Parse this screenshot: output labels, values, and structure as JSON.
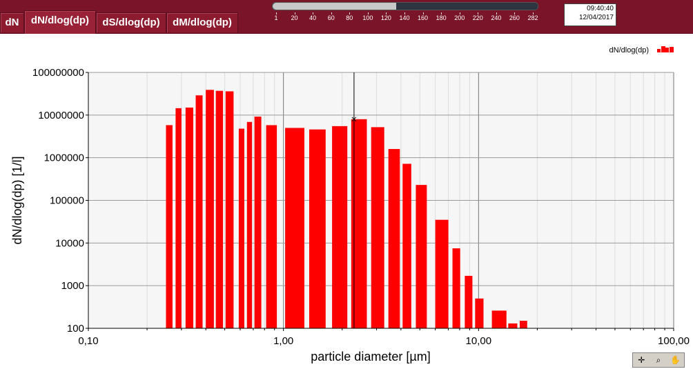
{
  "tabs": [
    {
      "label": "dN",
      "active": false
    },
    {
      "label": "dN/dlog(dp)",
      "active": true
    },
    {
      "label": "dS/dlog(dp)",
      "active": false
    },
    {
      "label": "dM/dlog(dp)",
      "active": false
    }
  ],
  "time_slider": {
    "ticks": [
      "1",
      "20",
      "40",
      "60",
      "80",
      "100",
      "120",
      "140",
      "160",
      "180",
      "200",
      "220",
      "240",
      "260",
      "282"
    ],
    "position": 0.465
  },
  "clock": {
    "time": "09:40:40",
    "date": "12/04/2017"
  },
  "legend": {
    "label": "dN/dlog(dp)"
  },
  "colors": {
    "bar": "#ff0000",
    "header": "#7a1428",
    "tab": "#8c1b30"
  },
  "toolbar": {
    "icons": [
      "crosshair-icon",
      "zoom-icon",
      "pan-hand-icon"
    ]
  },
  "chart_data": {
    "type": "bar",
    "title": "",
    "xlabel": "particle diameter [µm]",
    "ylabel": "dN/dlog(dp) [1/l]",
    "xscale": "log",
    "yscale": "log",
    "xlim": [
      0.1,
      100
    ],
    "ylim": [
      100,
      100000000
    ],
    "x_tick_labels": [
      "0,10",
      "1,00",
      "10,00",
      "100,00"
    ],
    "y_tick_labels": [
      "100",
      "1000",
      "10000",
      "100000",
      "1000000",
      "10000000",
      "100000000"
    ],
    "grid": true,
    "legend_position": "top-right",
    "cursor_x": 2.3,
    "series": [
      {
        "name": "dN/dlog(dp)",
        "x": [
          0.26,
          0.29,
          0.33,
          0.37,
          0.42,
          0.47,
          0.53,
          0.61,
          0.67,
          0.74,
          0.87,
          1.15,
          1.5,
          1.95,
          2.45,
          3.05,
          3.7,
          4.3,
          5.1,
          6.5,
          7.7,
          8.9,
          10.1,
          12.8,
          15.0,
          17.0
        ],
        "widths": [
          0.02,
          0.02,
          0.03,
          0.03,
          0.04,
          0.04,
          0.05,
          0.04,
          0.04,
          0.06,
          0.11,
          0.26,
          0.29,
          0.35,
          0.45,
          0.47,
          0.5,
          0.44,
          0.66,
          1.0,
          0.7,
          0.8,
          1.0,
          2.2,
          1.6,
          1.5
        ],
        "values": [
          5800000,
          14500000,
          15000000,
          29000000,
          39000000,
          37000000,
          36000000,
          4800000,
          6900000,
          9200000,
          5800000,
          5000000,
          4600000,
          5500000,
          8000000,
          5200000,
          1600000,
          720000,
          230000,
          35000,
          7500,
          1700,
          500,
          260,
          130,
          150
        ]
      }
    ]
  }
}
